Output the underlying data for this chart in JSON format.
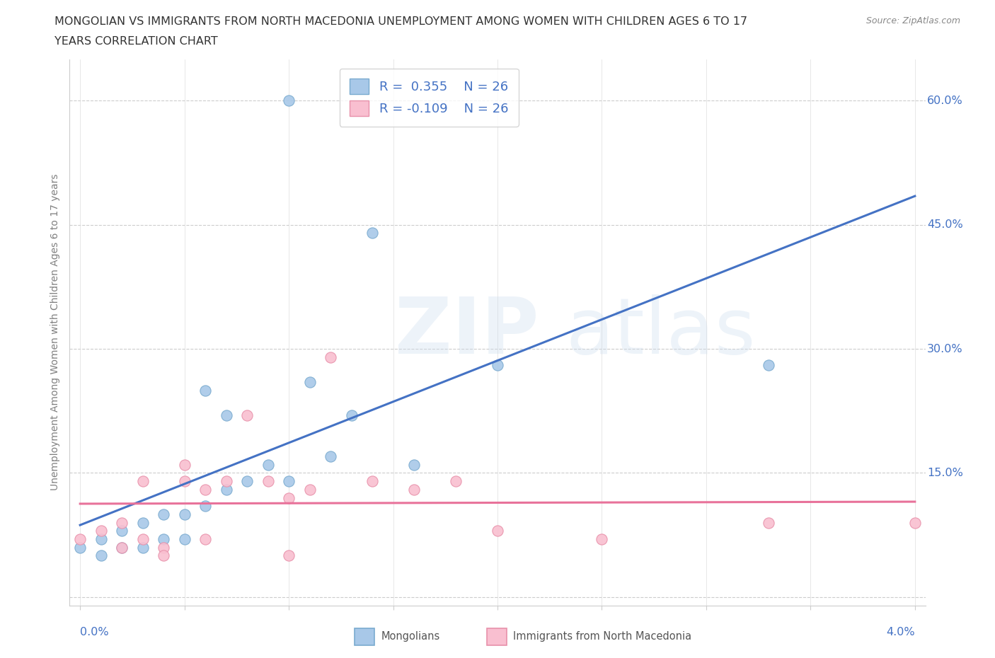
{
  "title_line1": "MONGOLIAN VS IMMIGRANTS FROM NORTH MACEDONIA UNEMPLOYMENT AMONG WOMEN WITH CHILDREN AGES 6 TO 17",
  "title_line2": "YEARS CORRELATION CHART",
  "source": "Source: ZipAtlas.com",
  "ylabel": "Unemployment Among Women with Children Ages 6 to 17 years",
  "mongolian_R": "0.355",
  "mongolian_N": "26",
  "macedonia_R": "-0.109",
  "macedonia_N": "26",
  "blue_scatter_color": "#a8c8e8",
  "blue_edge_color": "#7aabcf",
  "pink_scatter_color": "#f9bfd0",
  "pink_edge_color": "#e891aa",
  "blue_line_color": "#4472c4",
  "pink_line_color": "#e8729a",
  "mongolian_x": [
    0.0,
    0.001,
    0.001,
    0.002,
    0.002,
    0.003,
    0.003,
    0.004,
    0.004,
    0.005,
    0.005,
    0.006,
    0.006,
    0.007,
    0.007,
    0.008,
    0.009,
    0.01,
    0.01,
    0.011,
    0.012,
    0.013,
    0.014,
    0.016,
    0.02,
    0.033
  ],
  "mongolian_y": [
    0.06,
    0.07,
    0.05,
    0.08,
    0.06,
    0.09,
    0.06,
    0.1,
    0.07,
    0.1,
    0.07,
    0.11,
    0.25,
    0.13,
    0.22,
    0.14,
    0.16,
    0.14,
    0.6,
    0.26,
    0.17,
    0.22,
    0.44,
    0.16,
    0.28,
    0.28
  ],
  "macedonia_x": [
    0.0,
    0.001,
    0.002,
    0.002,
    0.003,
    0.003,
    0.004,
    0.004,
    0.005,
    0.005,
    0.006,
    0.006,
    0.007,
    0.008,
    0.009,
    0.01,
    0.01,
    0.011,
    0.012,
    0.014,
    0.016,
    0.018,
    0.02,
    0.025,
    0.033,
    0.04
  ],
  "macedonia_y": [
    0.07,
    0.08,
    0.06,
    0.09,
    0.07,
    0.14,
    0.06,
    0.05,
    0.14,
    0.16,
    0.13,
    0.07,
    0.14,
    0.22,
    0.14,
    0.12,
    0.05,
    0.13,
    0.29,
    0.14,
    0.13,
    0.14,
    0.08,
    0.07,
    0.09,
    0.09
  ],
  "yticks": [
    0.0,
    0.15,
    0.3,
    0.45,
    0.6
  ],
  "ytick_labels": [
    "",
    "15.0%",
    "30.0%",
    "45.0%",
    "60.0%"
  ],
  "xmin": 0.0,
  "xmax": 0.04,
  "ymin": 0.0,
  "ymax": 0.65,
  "legend_text_color": "#4472c4",
  "axis_label_color": "#4472c4",
  "ylabel_color": "#808080"
}
